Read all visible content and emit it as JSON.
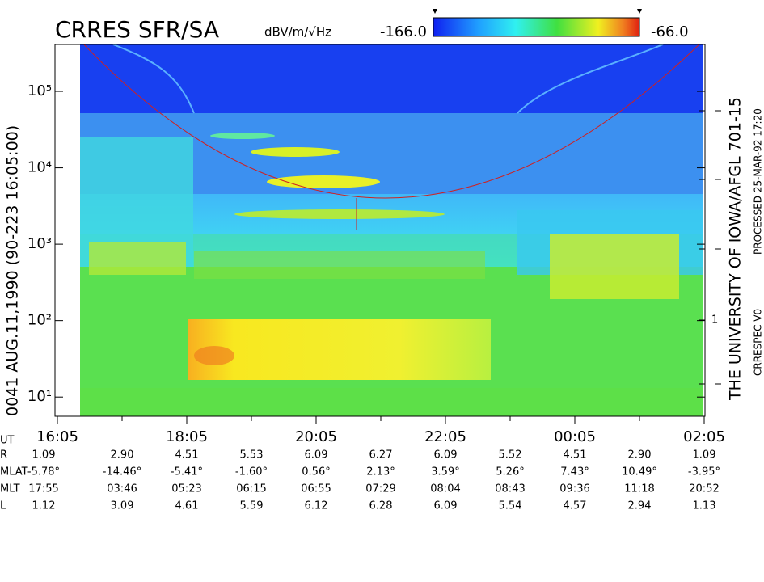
{
  "chart_data": {
    "type": "spectrogram",
    "title": "CRRES SFR/SA",
    "colorbar": {
      "unit": "dBV/m/√Hz",
      "min": {
        "value": -166,
        "label": "-166.0"
      },
      "max": {
        "value": -66,
        "label": "-66.0"
      }
    },
    "y_label": "0041  AUG.11,1990  (90-223 16:05:00)",
    "ylog": true,
    "ylim": [
      5.6,
      411000
    ],
    "yticks": [
      {
        "value": 10,
        "label": "10¹"
      },
      {
        "value": 100,
        "label": "10²"
      },
      {
        "value": 1000,
        "label": "10³"
      },
      {
        "value": 10000,
        "label": "10⁴"
      },
      {
        "value": 100000,
        "label": "10⁵"
      }
    ],
    "xticks": [
      "16:05",
      "18:05",
      "20:05",
      "22:05",
      "00:05",
      "02:05"
    ],
    "right_axis_labels": [
      "1"
    ],
    "credit": "THE UNIVERSITY OF IOWA/AFGL 701-15",
    "processed": "PROCESSED 25-MAR-92  17:20",
    "software": "CRRESPEC V0",
    "ephemeris": {
      "ut_label": "UT",
      "rows": [
        {
          "label": "R",
          "values": [
            "1.09",
            "2.90",
            "4.51",
            "5.53",
            "6.09",
            "6.27",
            "6.09",
            "5.52",
            "4.51",
            "2.90",
            "1.09"
          ]
        },
        {
          "label": "MLAT",
          "values": [
            "-5.78°",
            "-14.46°",
            "-5.41°",
            "-1.60°",
            "0.56°",
            "2.13°",
            "3.59°",
            "5.26°",
            "7.43°",
            "10.49°",
            "-3.95°"
          ]
        },
        {
          "label": "MLT",
          "values": [
            "17:55",
            "03:46",
            "05:23",
            "06:15",
            "06:55",
            "07:29",
            "08:04",
            "08:43",
            "09:36",
            "11:18",
            "20:52"
          ]
        },
        {
          "label": "L",
          "values": [
            "1.12",
            "3.09",
            "4.61",
            "5.59",
            "6.12",
            "6.28",
            "6.09",
            "5.54",
            "4.57",
            "2.94",
            "1.13"
          ]
        }
      ]
    }
  }
}
